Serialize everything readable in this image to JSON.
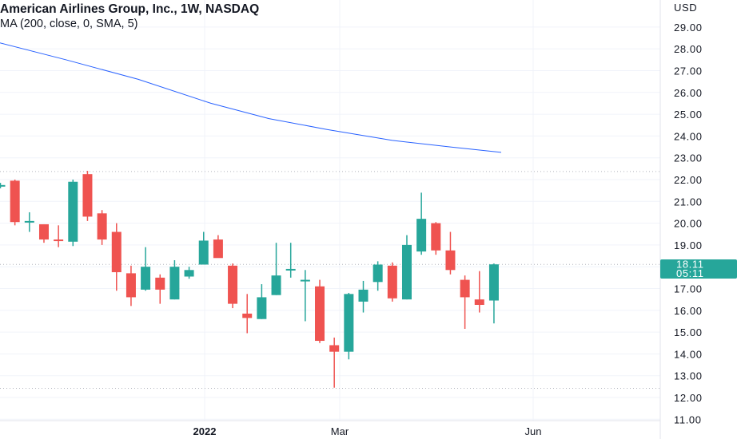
{
  "header": {
    "title": "American Airlines Group, Inc., 1W, NASDAQ",
    "indicator": "MA (200, close, 0, SMA, 5)"
  },
  "price_axis": {
    "currency": "USD",
    "ticks": [
      "29.00",
      "28.00",
      "27.00",
      "26.00",
      "25.00",
      "24.00",
      "23.00",
      "22.00",
      "21.00",
      "20.00",
      "19.00",
      "18.00",
      "17.00",
      "16.00",
      "15.00",
      "14.00",
      "13.00",
      "12.00",
      "11.00"
    ]
  },
  "time_axis": {
    "labels": [
      {
        "text": "2022",
        "bold": true
      },
      {
        "text": "Mar",
        "bold": false
      },
      {
        "text": "Jun",
        "bold": false
      }
    ]
  },
  "price_badge": {
    "price": "18.11",
    "countdown": "05:11",
    "color": "#26a69a"
  },
  "colors": {
    "up": "#26a69a",
    "down": "#ef5350",
    "ma": "#2962ff",
    "grid": "#f0f3fa",
    "dotted": "#b2b5be"
  },
  "chart_data": {
    "type": "candlestick",
    "title": "American Airlines Group, Inc., 1W, NASDAQ",
    "ylabel": "USD",
    "ylim": [
      10.8,
      30.3
    ],
    "grid": true,
    "reference_lines": [
      22.37,
      18.11,
      12.42
    ],
    "x_labels": [
      "2022",
      "Mar",
      "Jun"
    ],
    "candles": [
      {
        "o": 21.75,
        "h": 21.85,
        "l": 21.6,
        "c": 21.75
      },
      {
        "o": 21.95,
        "h": 22.0,
        "l": 19.9,
        "c": 20.05
      },
      {
        "o": 20.05,
        "h": 20.5,
        "l": 19.6,
        "c": 20.1
      },
      {
        "o": 19.95,
        "h": 19.95,
        "l": 19.1,
        "c": 19.25
      },
      {
        "o": 19.25,
        "h": 19.9,
        "l": 18.9,
        "c": 19.2
      },
      {
        "o": 19.15,
        "h": 22.0,
        "l": 18.95,
        "c": 21.9
      },
      {
        "o": 22.25,
        "h": 22.4,
        "l": 20.1,
        "c": 20.3
      },
      {
        "o": 20.45,
        "h": 20.6,
        "l": 19.0,
        "c": 19.25
      },
      {
        "o": 19.6,
        "h": 20.0,
        "l": 16.9,
        "c": 17.75
      },
      {
        "o": 17.7,
        "h": 18.05,
        "l": 16.2,
        "c": 16.6
      },
      {
        "o": 16.95,
        "h": 18.9,
        "l": 16.9,
        "c": 18.0
      },
      {
        "o": 17.5,
        "h": 17.65,
        "l": 16.3,
        "c": 16.95
      },
      {
        "o": 16.5,
        "h": 18.3,
        "l": 16.5,
        "c": 18.0
      },
      {
        "o": 17.55,
        "h": 18.0,
        "l": 17.45,
        "c": 17.85
      },
      {
        "o": 18.1,
        "h": 19.6,
        "l": 18.1,
        "c": 19.2
      },
      {
        "o": 19.25,
        "h": 19.45,
        "l": 18.45,
        "c": 18.4
      },
      {
        "o": 18.05,
        "h": 18.15,
        "l": 16.1,
        "c": 16.3
      },
      {
        "o": 15.85,
        "h": 16.75,
        "l": 14.95,
        "c": 15.65
      },
      {
        "o": 15.6,
        "h": 17.2,
        "l": 15.6,
        "c": 16.6
      },
      {
        "o": 16.7,
        "h": 19.1,
        "l": 16.7,
        "c": 17.6
      },
      {
        "o": 17.85,
        "h": 19.1,
        "l": 17.5,
        "c": 17.9
      },
      {
        "o": 17.4,
        "h": 17.85,
        "l": 15.5,
        "c": 17.4
      },
      {
        "o": 17.1,
        "h": 17.4,
        "l": 14.5,
        "c": 14.6
      },
      {
        "o": 14.4,
        "h": 14.75,
        "l": 12.45,
        "c": 14.1
      },
      {
        "o": 14.1,
        "h": 16.8,
        "l": 13.75,
        "c": 16.75
      },
      {
        "o": 16.4,
        "h": 17.35,
        "l": 15.9,
        "c": 16.95
      },
      {
        "o": 17.3,
        "h": 18.25,
        "l": 16.9,
        "c": 18.1
      },
      {
        "o": 18.05,
        "h": 18.2,
        "l": 16.4,
        "c": 16.55
      },
      {
        "o": 16.5,
        "h": 19.45,
        "l": 16.5,
        "c": 19.0
      },
      {
        "o": 18.7,
        "h": 21.4,
        "l": 18.55,
        "c": 20.2
      },
      {
        "o": 20.0,
        "h": 20.05,
        "l": 18.55,
        "c": 18.75
      },
      {
        "o": 18.75,
        "h": 19.6,
        "l": 17.65,
        "c": 17.85
      },
      {
        "o": 17.4,
        "h": 17.6,
        "l": 15.15,
        "c": 16.6
      },
      {
        "o": 16.5,
        "h": 17.8,
        "l": 15.9,
        "c": 16.25
      },
      {
        "o": 16.45,
        "h": 18.15,
        "l": 15.4,
        "c": 18.11
      }
    ],
    "ma_series": {
      "x_index": [
        -0.2,
        4.5,
        9.5,
        14.5,
        18.5,
        22.5,
        27.0,
        31.0,
        34.5
      ],
      "y": [
        28.3,
        27.5,
        26.6,
        25.5,
        24.8,
        24.3,
        23.8,
        23.5,
        23.25
      ]
    }
  }
}
